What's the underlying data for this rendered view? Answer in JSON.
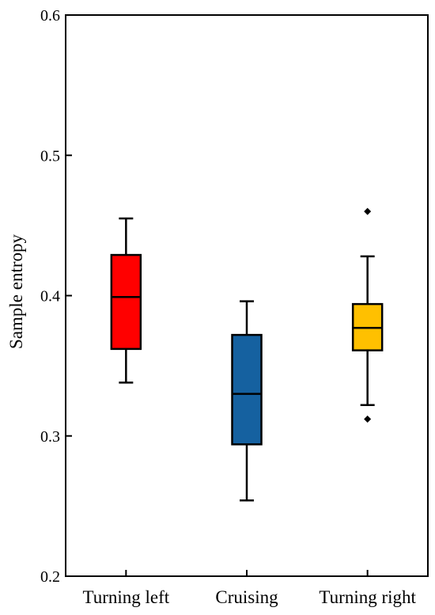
{
  "chart_data": {
    "type": "box",
    "title": "",
    "xlabel": "",
    "ylabel": "Sample entropy",
    "ylim": [
      0.2,
      0.6
    ],
    "yticks": [
      "0.2",
      "0.3",
      "0.4",
      "0.5",
      "0.6"
    ],
    "grid": false,
    "legend": "none",
    "categories": [
      "Turning left",
      "Cruising",
      "Turning right"
    ],
    "boxes": [
      {
        "category": "Turning left",
        "color": "#ff0000",
        "whisker_low": 0.338,
        "q1": 0.362,
        "median": 0.399,
        "q3": 0.429,
        "whisker_high": 0.455,
        "outliers": []
      },
      {
        "category": "Cruising",
        "color": "#1561a0",
        "whisker_low": 0.254,
        "q1": 0.294,
        "median": 0.33,
        "q3": 0.372,
        "whisker_high": 0.396,
        "outliers": []
      },
      {
        "category": "Turning right",
        "color": "#ffc000",
        "whisker_low": 0.322,
        "q1": 0.361,
        "median": 0.377,
        "q3": 0.394,
        "whisker_high": 0.428,
        "outliers": [
          0.46,
          0.312
        ]
      }
    ]
  }
}
